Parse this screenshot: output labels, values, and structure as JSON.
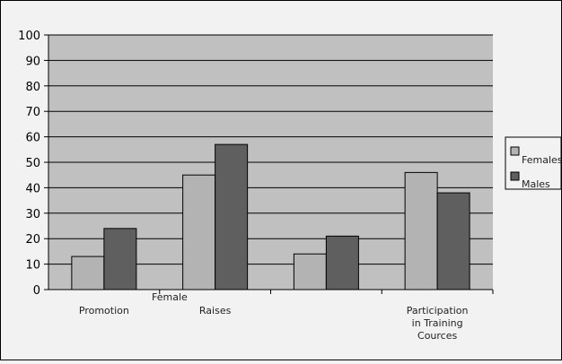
{
  "chart_data": {
    "type": "bar",
    "title": "",
    "xlabel": "",
    "ylabel": "",
    "ylim": [
      0,
      100
    ],
    "yticks": [
      0,
      10,
      20,
      30,
      40,
      50,
      60,
      70,
      80,
      90,
      100
    ],
    "categories": [
      "Promotion",
      "Raises",
      "",
      "Participation in Training Cources"
    ],
    "series": [
      {
        "name": "Females",
        "values": [
          13,
          45,
          14,
          46
        ],
        "color": "#b3b3b3"
      },
      {
        "name": "Males",
        "values": [
          24,
          57,
          21,
          38
        ],
        "color": "#5f5f5f"
      }
    ],
    "annotations": [
      "Female"
    ],
    "grid": true,
    "legend_position": "right",
    "plot_background": "#c0c0c0"
  }
}
